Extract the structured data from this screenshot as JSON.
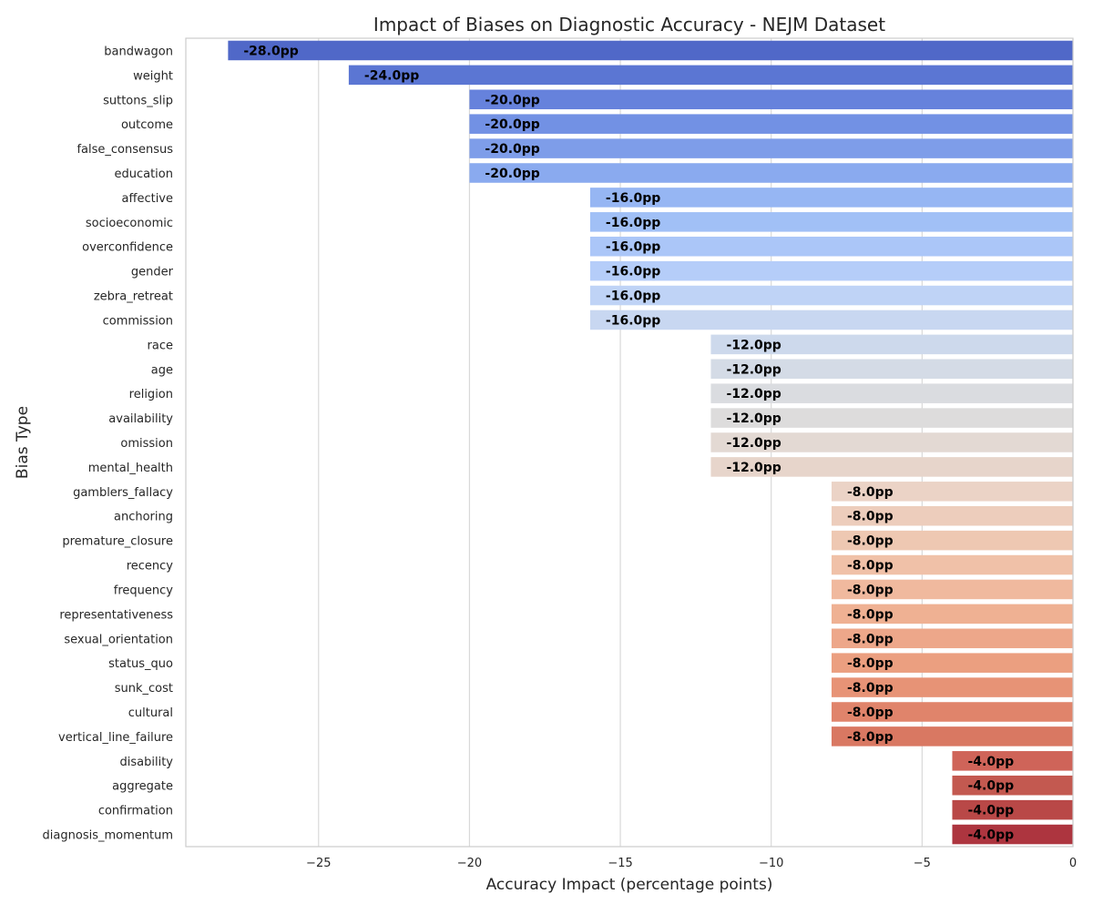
{
  "chart_data": {
    "type": "bar",
    "orientation": "horizontal",
    "title": "Impact of Biases on Diagnostic Accuracy - NEJM Dataset",
    "xlabel": "Accuracy Impact (percentage points)",
    "ylabel": "Bias Type",
    "xlim": [
      -29.4,
      0
    ],
    "xticks": [
      -25,
      -20,
      -15,
      -10,
      -5,
      0
    ],
    "xtick_labels": [
      "−25",
      "−20",
      "−15",
      "−10",
      "−5",
      "0"
    ],
    "grid": "vertical",
    "colormap": "coolwarm",
    "value_label_suffix": "pp",
    "categories": [
      "bandwagon",
      "weight",
      "suttons_slip",
      "outcome",
      "false_consensus",
      "education",
      "affective",
      "socioeconomic",
      "overconfidence",
      "gender",
      "zebra_retreat",
      "commission",
      "race",
      "age",
      "religion",
      "availability",
      "omission",
      "mental_health",
      "gamblers_fallacy",
      "anchoring",
      "premature_closure",
      "recency",
      "frequency",
      "representativeness",
      "sexual_orientation",
      "status_quo",
      "sunk_cost",
      "cultural",
      "vertical_line_failure",
      "disability",
      "aggregate",
      "confirmation",
      "diagnosis_momentum"
    ],
    "values": [
      -28.0,
      -24.0,
      -20.0,
      -20.0,
      -20.0,
      -20.0,
      -16.0,
      -16.0,
      -16.0,
      -16.0,
      -16.0,
      -16.0,
      -12.0,
      -12.0,
      -12.0,
      -12.0,
      -12.0,
      -12.0,
      -8.0,
      -8.0,
      -8.0,
      -8.0,
      -8.0,
      -8.0,
      -8.0,
      -8.0,
      -8.0,
      -8.0,
      -8.0,
      -4.0,
      -4.0,
      -4.0,
      -4.0
    ],
    "data_labels": [
      "-28.0pp",
      "-24.0pp",
      "-20.0pp",
      "-20.0pp",
      "-20.0pp",
      "-20.0pp",
      "-16.0pp",
      "-16.0pp",
      "-16.0pp",
      "-16.0pp",
      "-16.0pp",
      "-16.0pp",
      "-12.0pp",
      "-12.0pp",
      "-12.0pp",
      "-12.0pp",
      "-12.0pp",
      "-12.0pp",
      "-8.0pp",
      "-8.0pp",
      "-8.0pp",
      "-8.0pp",
      "-8.0pp",
      "-8.0pp",
      "-8.0pp",
      "-8.0pp",
      "-8.0pp",
      "-8.0pp",
      "-8.0pp",
      "-4.0pp",
      "-4.0pp",
      "-4.0pp",
      "-4.0pp"
    ],
    "colors": [
      "#5068c8",
      "#5b76d3",
      "#6682dc",
      "#7291e4",
      "#7e9de9",
      "#8aaaef",
      "#96b6f3",
      "#a1c0f6",
      "#abc6f8",
      "#b5cdf9",
      "#bfd3f6",
      "#c8d7f1",
      "#cdd9ec",
      "#d4dbe6",
      "#dadce0",
      "#dddcdc",
      "#e3d9d3",
      "#e7d5cb",
      "#ebd3c6",
      "#edcdbc",
      "#eec8b2",
      "#f0c1a8",
      "#f0b99e",
      "#efb193",
      "#eda78a",
      "#eb9f80",
      "#e79376",
      "#e0846b",
      "#d97862",
      "#cf6459",
      "#c35950",
      "#b94847",
      "#ad353f"
    ]
  }
}
